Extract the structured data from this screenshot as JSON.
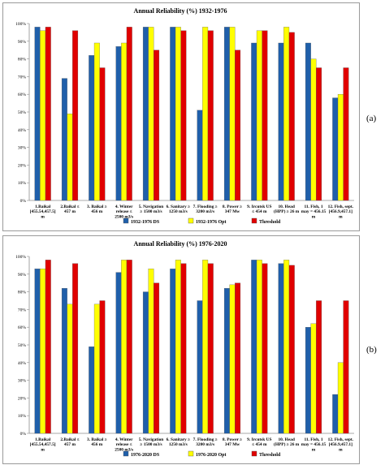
{
  "chart_data": [
    {
      "type": "bar",
      "title": "Annual Reliability (%) 1932-1976",
      "panel_label": "(a)",
      "categories": [
        [
          "1.Baikal",
          "[455.54,457.5]",
          "m"
        ],
        [
          "2.Baikal ≤",
          "457 m"
        ],
        [
          "3. Baikal ≥",
          "456 m"
        ],
        [
          "4. Winter",
          "release ≤",
          "2500 m3/s"
        ],
        [
          "5. Navigation",
          "≥ 1500 m3/s"
        ],
        [
          "6. Sanitary ≥",
          "1250 m3/s"
        ],
        [
          "7. Flooding ≥",
          "3200 m3/s"
        ],
        [
          "8. Power ≥",
          "347 Mw"
        ],
        [
          "9. Ircutsk US",
          "≤ 454 m"
        ],
        [
          "10. Head",
          "(HPP) ≥ 26 m"
        ],
        [
          "11. Fish, 1",
          "may = 456.15",
          "m"
        ],
        [
          "12. Fish, sept.",
          "[456.9,457.1]",
          "m"
        ]
      ],
      "ylim": [
        0,
        100
      ],
      "yticks": [
        "0%",
        "10%",
        "20%",
        "30%",
        "40%",
        "50%",
        "60%",
        "70%",
        "80%",
        "90%",
        "100%"
      ],
      "legend_position": "bottom",
      "grid": false,
      "series": [
        {
          "name": "1932-1976 DS",
          "color": "#1f5faa",
          "values": [
            98,
            69,
            82,
            87,
            98,
            98,
            51,
            98,
            89,
            89,
            89,
            58
          ]
        },
        {
          "name": "1932-1976 Opt",
          "color": "#ffff00",
          "values": [
            96,
            49,
            89,
            89,
            98,
            98,
            98,
            98,
            96,
            98,
            80,
            60
          ]
        },
        {
          "name": "Threshold",
          "color": "#e00000",
          "values": [
            98,
            96,
            75,
            98,
            85,
            96,
            96,
            85,
            96,
            95,
            75,
            75
          ]
        }
      ]
    },
    {
      "type": "bar",
      "title": "Annual Reliability (%) 1976-2020",
      "panel_label": "(b)",
      "categories": [
        [
          "1.Baikal",
          "[455.54,457.5]",
          "m"
        ],
        [
          "2.Baikal ≤",
          "457 m"
        ],
        [
          "3. Baikal ≥",
          "456 m"
        ],
        [
          "4. Winter",
          "release ≤",
          "2500 m3/s"
        ],
        [
          "5. Navigation",
          "≥ 1500 m3/s"
        ],
        [
          "6. Sanitary ≥",
          "1250 m3/s"
        ],
        [
          "7. Flooding ≥",
          "3200 m3/s"
        ],
        [
          "8. Power ≥",
          "347 Mw"
        ],
        [
          "9. Ircutsk US",
          "≤ 454 m"
        ],
        [
          "10. Head",
          "(HPP) ≥ 26 m"
        ],
        [
          "11. Fish, 1",
          "may = 456.15",
          "m"
        ],
        [
          "12. Fish, sept.",
          "[456.9,457.1]",
          "m"
        ]
      ],
      "ylim": [
        0,
        100
      ],
      "yticks": [
        "0%",
        "10%",
        "20%",
        "30%",
        "40%",
        "50%",
        "60%",
        "70%",
        "80%",
        "90%",
        "100%"
      ],
      "legend_position": "bottom",
      "grid": false,
      "series": [
        {
          "name": "1976-2020 DS",
          "color": "#1f5faa",
          "values": [
            93,
            82,
            49,
            91,
            80,
            93,
            75,
            82,
            98,
            96,
            60,
            22
          ]
        },
        {
          "name": "1976-2020 Opt",
          "color": "#ffff00",
          "values": [
            93,
            73,
            73,
            98,
            93,
            98,
            98,
            84,
            98,
            98,
            62,
            40
          ]
        },
        {
          "name": "Threshold",
          "color": "#e00000",
          "values": [
            98,
            96,
            75,
            98,
            85,
            96,
            96,
            85,
            96,
            95,
            75,
            75
          ]
        }
      ]
    }
  ]
}
